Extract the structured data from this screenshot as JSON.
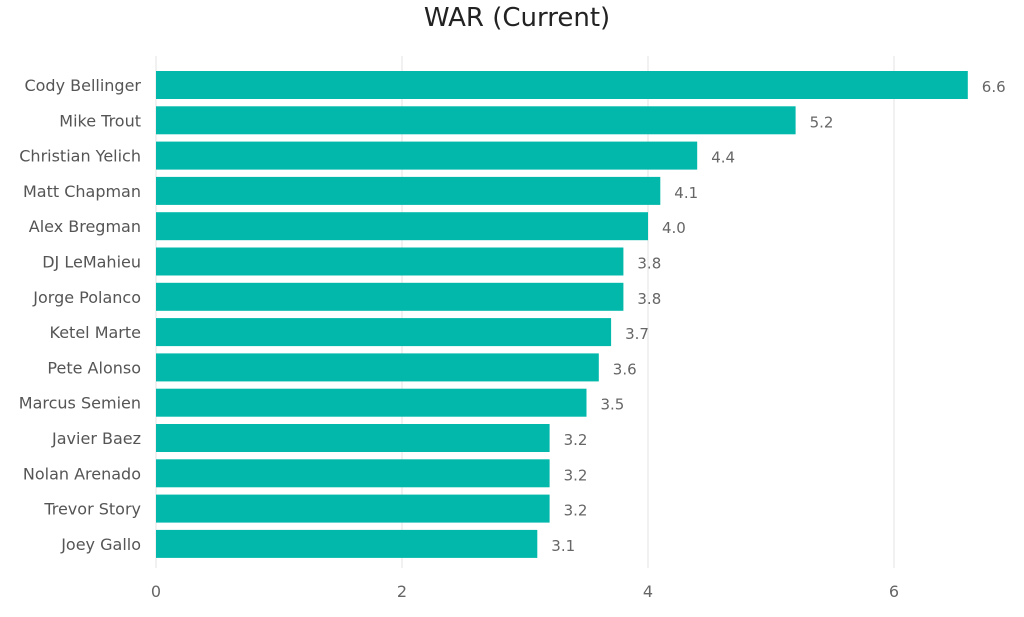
{
  "chart_data": {
    "type": "bar",
    "orientation": "horizontal",
    "title": "WAR (Current)",
    "xlabel": "",
    "ylabel": "",
    "categories": [
      "Cody Bellinger",
      "Mike Trout",
      "Christian Yelich",
      "Matt Chapman",
      "Alex Bregman",
      "DJ LeMahieu",
      "Jorge Polanco",
      "Ketel Marte",
      "Pete Alonso",
      "Marcus Semien",
      "Javier Baez",
      "Nolan Arenado",
      "Trevor Story",
      "Joey Gallo"
    ],
    "values": [
      6.6,
      5.2,
      4.4,
      4.1,
      4.0,
      3.8,
      3.8,
      3.7,
      3.6,
      3.5,
      3.2,
      3.2,
      3.2,
      3.1
    ],
    "value_labels": [
      "6.6",
      "5.2",
      "4.4",
      "4.1",
      "4.0",
      "3.8",
      "3.8",
      "3.7",
      "3.6",
      "3.5",
      "3.2",
      "3.2",
      "3.2",
      "3.1"
    ],
    "xlim": [
      0,
      6.6
    ],
    "xticks": [
      0,
      2,
      4,
      6
    ],
    "xtick_labels": [
      "0",
      "2",
      "4",
      "6"
    ],
    "grid": true,
    "legend": "none",
    "bar_color": "#01b8aa"
  }
}
